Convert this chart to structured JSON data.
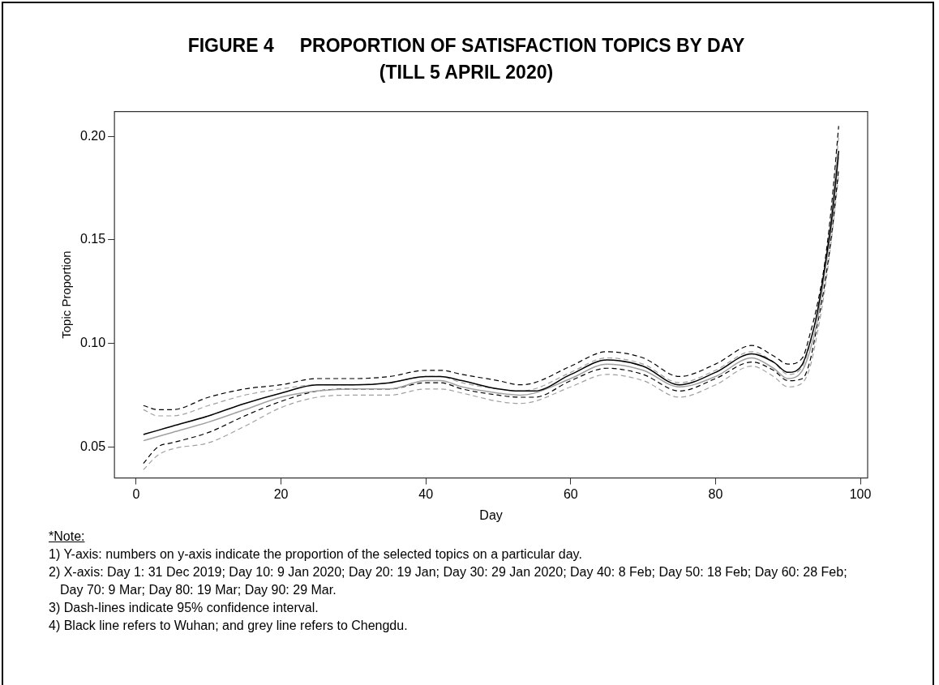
{
  "chart_data": {
    "type": "line",
    "title": "FIGURE 4     PROPORTION OF SATISFACTION TOPICS BY DAY\n(TILL 5 APRIL 2020)",
    "xlabel": "Day",
    "ylabel": "Topic Proportion",
    "x": [
      1,
      3,
      5,
      10,
      15,
      20,
      25,
      30,
      35,
      40,
      42,
      45,
      50,
      53,
      55,
      60,
      65,
      70,
      75,
      80,
      85,
      88,
      90,
      92,
      93,
      94,
      95,
      96,
      97
    ],
    "series": [
      {
        "color": "#000000",
        "line_style": "solid",
        "values": [
          0.056,
          0.058,
          0.06,
          0.065,
          0.071,
          0.076,
          0.08,
          0.08,
          0.081,
          0.084,
          0.084,
          0.082,
          0.078,
          0.077,
          0.077,
          0.085,
          0.092,
          0.089,
          0.08,
          0.086,
          0.095,
          0.091,
          0.086,
          0.09,
          0.1,
          0.114,
          0.135,
          0.159,
          0.193
        ]
      },
      {
        "color": "#a0a0a0",
        "line_style": "solid",
        "values": [
          0.053,
          0.055,
          0.057,
          0.062,
          0.068,
          0.074,
          0.077,
          0.078,
          0.078,
          0.082,
          0.082,
          0.079,
          0.076,
          0.075,
          0.076,
          0.083,
          0.09,
          0.087,
          0.079,
          0.084,
          0.093,
          0.088,
          0.083,
          0.087,
          0.096,
          0.11,
          0.132,
          0.157,
          0.19
        ]
      },
      {
        "color": "#000000",
        "line_style": "dashed",
        "values": [
          0.07,
          0.068,
          0.068,
          0.074,
          0.078,
          0.08,
          0.083,
          0.083,
          0.084,
          0.087,
          0.087,
          0.085,
          0.082,
          0.08,
          0.081,
          0.089,
          0.096,
          0.093,
          0.084,
          0.09,
          0.099,
          0.094,
          0.09,
          0.093,
          0.104,
          0.118,
          0.137,
          0.166,
          0.205
        ]
      },
      {
        "color": "#000000",
        "line_style": "dashed",
        "values": [
          0.042,
          0.05,
          0.052,
          0.057,
          0.065,
          0.072,
          0.077,
          0.078,
          0.078,
          0.081,
          0.081,
          0.078,
          0.075,
          0.074,
          0.074,
          0.082,
          0.088,
          0.085,
          0.077,
          0.083,
          0.091,
          0.087,
          0.082,
          0.083,
          0.091,
          0.108,
          0.127,
          0.152,
          0.184
        ]
      },
      {
        "color": "#a0a0a0",
        "line_style": "dashed",
        "values": [
          0.068,
          0.065,
          0.065,
          0.07,
          0.075,
          0.078,
          0.08,
          0.08,
          0.081,
          0.084,
          0.084,
          0.081,
          0.078,
          0.077,
          0.078,
          0.086,
          0.093,
          0.09,
          0.081,
          0.087,
          0.096,
          0.091,
          0.085,
          0.089,
          0.099,
          0.115,
          0.135,
          0.163,
          0.2
        ]
      },
      {
        "color": "#a0a0a0",
        "line_style": "dashed",
        "values": [
          0.039,
          0.046,
          0.049,
          0.052,
          0.06,
          0.069,
          0.074,
          0.075,
          0.075,
          0.078,
          0.078,
          0.076,
          0.072,
          0.071,
          0.072,
          0.079,
          0.085,
          0.082,
          0.074,
          0.08,
          0.089,
          0.084,
          0.079,
          0.081,
          0.088,
          0.104,
          0.124,
          0.15,
          0.181
        ]
      }
    ],
    "xlim": [
      -3,
      101
    ],
    "xticks": [
      0,
      20,
      40,
      60,
      80,
      100
    ],
    "ylim": [
      0.035,
      0.212
    ],
    "yticks": [
      {
        "value": 0.05,
        "label": "0.05"
      },
      {
        "value": 0.1,
        "label": "0.10"
      },
      {
        "value": 0.15,
        "label": "0.15"
      },
      {
        "value": 0.2,
        "label": "0.20"
      }
    ],
    "grid": false,
    "legend": false,
    "marker": "none",
    "annotations": [
      "*Note:",
      "1) Y-axis: numbers on y-axis indicate the proportion of the selected topics on a particular day.",
      "2) X-axis: Day 1: 31 Dec 2019; Day 10: 9 Jan 2020; Day 20: 19 Jan; Day 30: 29 Jan 2020; Day 40: 8 Feb; Day 50: 18 Feb; Day 60: 28 Feb; Day 70: 9 Mar; Day 80: 19 Mar; Day 90: 29 Mar.",
      "3) Dash-lines indicate 95% confidence interval.",
      "4) Black line refers to Wuhan; and grey line refers to Chengdu."
    ]
  }
}
